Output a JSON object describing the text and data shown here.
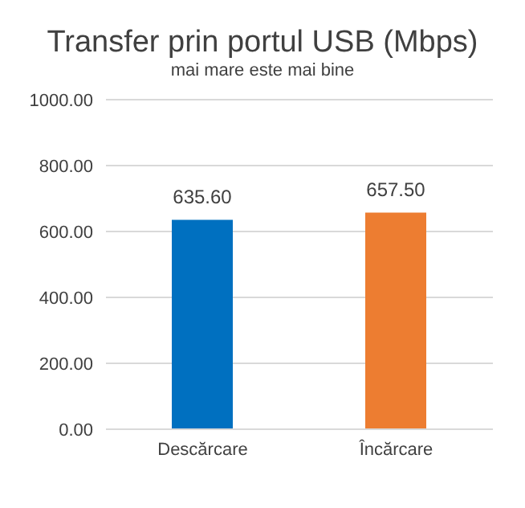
{
  "chart_data": {
    "type": "bar",
    "title": "Transfer prin portul USB (Mbps)",
    "subtitle": "mai mare este mai bine",
    "categories": [
      "Descărcare",
      "Încărcare"
    ],
    "values": [
      635.6,
      657.5
    ],
    "colors": [
      "#0070c0",
      "#ed7d31"
    ],
    "value_labels": [
      "635.60",
      "657.50"
    ],
    "ylim": [
      0,
      1000
    ],
    "yticks": [
      {
        "value": 0,
        "label": "0.00"
      },
      {
        "value": 200,
        "label": "200.00"
      },
      {
        "value": 400,
        "label": "400.00"
      },
      {
        "value": 600,
        "label": "600.00"
      },
      {
        "value": 800,
        "label": "800.00"
      },
      {
        "value": 1000,
        "label": "1000.00"
      }
    ],
    "grid": "y"
  }
}
